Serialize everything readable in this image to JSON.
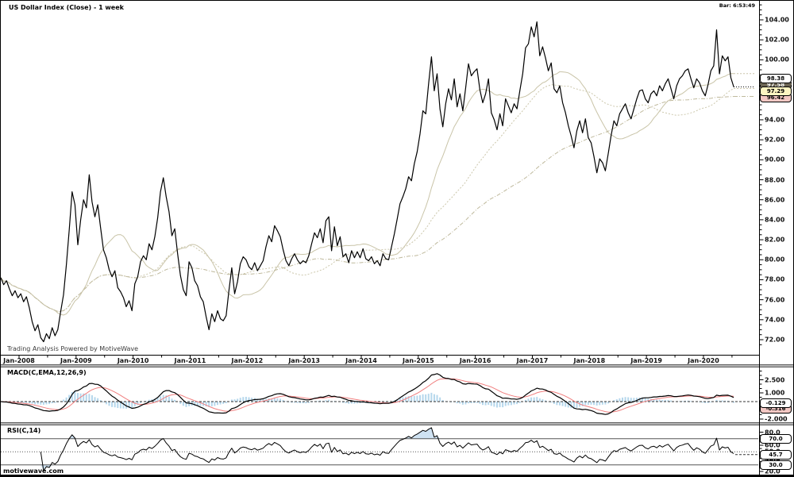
{
  "window": {
    "title": "US Dollar Index (Close) - 1 week",
    "bar_clock": "Bar: 6:53:49",
    "watermark": "Trading Analysis Powered by MotiveWave",
    "footer": "motivewave.com"
  },
  "price_axis": {
    "tick_labels": [
      "104.00",
      "102.00",
      "100.00",
      "98.00",
      "96.00",
      "94.00",
      "92.00",
      "90.00",
      "88.00",
      "86.00",
      "84.00",
      "82.00",
      "80.00",
      "78.00",
      "76.00",
      "74.00",
      "72.00"
    ],
    "tags": [
      {
        "text": "98.38",
        "style": "white"
      },
      {
        "text": "97.58",
        "style": "dark"
      },
      {
        "text": "97.29",
        "style": "yellow"
      },
      {
        "text": "96.42",
        "style": "pink"
      }
    ]
  },
  "time_axis": {
    "tick_labels": [
      "Jan-2008",
      "Jan-2009",
      "Jan-2010",
      "Jan-2011",
      "Jan-2012",
      "Jan-2013",
      "Jan-2014",
      "Jan-2015",
      "Jan-2016",
      "Jan-2017",
      "Jan-2018",
      "Jan-2019",
      "Jan-2020"
    ]
  },
  "macd": {
    "label": "MACD(C,EMA,12,26,9)",
    "tick_labels": [
      {
        "label": "2.500",
        "value": 2.5
      },
      {
        "label": "1.000",
        "value": 1.0
      },
      {
        "label": "-0.500",
        "value": -0.5
      },
      {
        "label": "-2.000",
        "value": -2.0
      }
    ],
    "tags": [
      {
        "text": "-0.129",
        "style": "white"
      },
      {
        "text": "-0.316",
        "style": "pink"
      }
    ]
  },
  "rsi": {
    "label": "RSI(C,14)",
    "tick_labels": [
      {
        "label": "80.0",
        "value": 80
      },
      {
        "label": "70.0",
        "value": 70
      },
      {
        "label": "60.0",
        "value": 60
      },
      {
        "label": "50.0",
        "value": 50
      },
      {
        "label": "40.0",
        "value": 40
      },
      {
        "label": "30.0",
        "value": 30
      },
      {
        "label": "20.0",
        "value": 20
      }
    ],
    "tags": [
      {
        "text": "70.0"
      },
      {
        "text": "45.7"
      },
      {
        "text": "30.0"
      }
    ]
  },
  "colors": {
    "price_line": "#000000",
    "ma_fast": "#c9c4a8",
    "ma_mid": "#ccc7ac",
    "ma_slow": "#bfb99c",
    "macd_line": "#000000",
    "signal_line": "#f07f7f",
    "histogram": "#b5d7ec",
    "rsi_line": "#000000",
    "rsi_fill": "#cfe2f2",
    "level_line": "#555555",
    "separator": "#b6b6b6",
    "tag_last_bg": "#fdf5c2"
  },
  "chart_data": {
    "type": "line",
    "title": "US Dollar Index (Close) - 1 week",
    "timeframe": "1 week",
    "x_start": 2007.68,
    "x_step": 0.05,
    "ylim": [
      72,
      104
    ],
    "x_ticks": [
      2008,
      2009,
      2010,
      2011,
      2012,
      2013,
      2014,
      2015,
      2016,
      2017,
      2018,
      2019,
      2020
    ],
    "last_close": 97.29,
    "series": [
      {
        "name": "Close",
        "values": [
          78.2,
          77.5,
          77.9,
          77.1,
          76.4,
          76.9,
          76.2,
          76.6,
          75.8,
          76.3,
          75.2,
          73.8,
          72.9,
          73.5,
          72.2,
          71.8,
          72.6,
          72.1,
          73.2,
          72.4,
          73.0,
          74.8,
          76.5,
          79.5,
          83.0,
          86.8,
          85.5,
          81.5,
          84.0,
          86.0,
          85.2,
          88.5,
          85.8,
          84.3,
          85.5,
          83.2,
          81.0,
          80.2,
          79.0,
          78.3,
          78.9,
          77.2,
          76.8,
          76.2,
          75.3,
          75.9,
          74.9,
          77.6,
          78.3,
          79.8,
          80.4,
          80.0,
          81.6,
          81.0,
          82.3,
          84.2,
          86.8,
          88.2,
          86.3,
          84.8,
          82.4,
          83.1,
          80.6,
          78.4,
          77.0,
          76.4,
          79.8,
          79.2,
          77.9,
          77.4,
          76.3,
          75.8,
          74.3,
          73.0,
          74.6,
          73.8,
          74.9,
          74.1,
          73.9,
          74.4,
          76.9,
          79.2,
          76.6,
          77.8,
          79.6,
          80.3,
          80.0,
          79.3,
          79.0,
          79.7,
          78.9,
          79.4,
          79.9,
          81.3,
          82.4,
          81.8,
          83.4,
          82.9,
          82.3,
          81.0,
          79.9,
          79.4,
          80.1,
          80.6,
          80.0,
          79.6,
          79.9,
          79.7,
          80.4,
          81.6,
          82.7,
          82.2,
          83.1,
          81.7,
          83.9,
          84.3,
          80.9,
          83.3,
          81.4,
          82.3,
          80.3,
          80.6,
          79.7,
          80.9,
          80.2,
          80.8,
          80.2,
          81.1,
          80.1,
          79.9,
          80.3,
          79.6,
          79.9,
          79.4,
          80.6,
          80.1,
          80.0,
          81.3,
          82.6,
          84.1,
          85.6,
          86.3,
          87.1,
          88.3,
          87.9,
          89.6,
          90.8,
          92.6,
          94.9,
          94.6,
          97.6,
          100.3,
          96.9,
          98.6,
          95.1,
          93.3,
          95.6,
          97.1,
          96.0,
          98.1,
          95.3,
          96.6,
          94.9,
          97.2,
          99.6,
          98.4,
          98.8,
          99.1,
          97.0,
          95.7,
          96.6,
          98.1,
          94.7,
          94.0,
          93.0,
          94.6,
          93.4,
          96.1,
          95.4,
          94.7,
          95.6,
          95.1,
          96.9,
          98.6,
          101.2,
          101.6,
          103.3,
          102.3,
          103.8,
          100.4,
          101.3,
          100.2,
          98.9,
          99.7,
          97.1,
          96.7,
          97.4,
          95.7,
          94.7,
          93.4,
          92.4,
          91.2,
          92.9,
          93.9,
          92.7,
          94.1,
          92.2,
          91.7,
          90.3,
          88.7,
          90.1,
          89.7,
          88.9,
          90.6,
          92.4,
          93.9,
          93.4,
          94.6,
          95.1,
          95.6,
          94.7,
          94.1,
          95.1,
          96.1,
          96.9,
          97.0,
          96.1,
          95.7,
          96.6,
          96.9,
          96.4,
          97.4,
          96.9,
          97.6,
          98.1,
          97.1,
          96.1,
          97.4,
          98.1,
          98.4,
          98.9,
          99.1,
          98.1,
          97.2,
          98.1,
          97.7,
          96.9,
          96.4,
          97.5,
          98.9,
          99.4,
          103.0,
          98.6,
          100.4,
          99.9,
          100.3,
          98.2,
          97.29
        ]
      }
    ],
    "overlays": [
      {
        "name": "sma-fast",
        "window": 20,
        "dash": ""
      },
      {
        "name": "sma-mid",
        "window": 44,
        "dash": "2,2"
      },
      {
        "name": "sma-slow",
        "window": 88,
        "dash": "5,2,1,2"
      }
    ],
    "indicators": [
      {
        "type": "MACD",
        "params": [
          12,
          26,
          9
        ],
        "last": -0.129,
        "peak_scale": 3.2
      },
      {
        "type": "RSI",
        "params": [
          14
        ],
        "last": 45.7,
        "levels": [
          70,
          50,
          30
        ]
      }
    ]
  }
}
